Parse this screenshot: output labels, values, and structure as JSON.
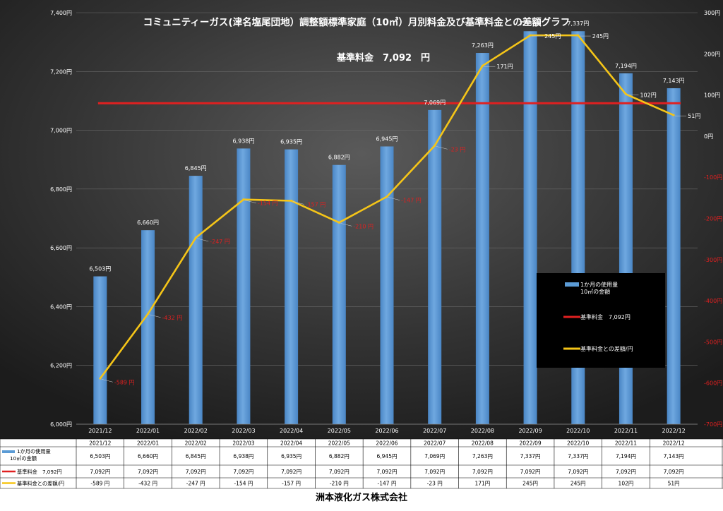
{
  "company": "洲本液化ガス株式会社",
  "chart_data": {
    "type": "bar",
    "title": "コミュニティーガス(津名塩尾団地）調整額標準家庭（10㎥）月別料金及び基準料金との差額グラフ",
    "subtitle": "基準料金　7,092　円",
    "categories": [
      "2021/12",
      "2022/01",
      "2022/02",
      "2022/03",
      "2022/04",
      "2022/05",
      "2022/06",
      "2022/07",
      "2022/08",
      "2022/09",
      "2022/10",
      "2022/11",
      "2022/12"
    ],
    "ylim": [
      6000,
      7400
    ],
    "y2lim": [
      -700,
      300
    ],
    "yticks": [
      "6,000円",
      "6,200円",
      "6,400円",
      "6,600円",
      "6,800円",
      "7,000円",
      "7,200円",
      "7,400円"
    ],
    "y2ticks": [
      "-700円",
      "-600円",
      "-500円",
      "-400円",
      "-300円",
      "-200円",
      "-100円",
      "0円",
      "100円",
      "200円",
      "300円"
    ],
    "series": [
      {
        "name": "1か月の使用量10㎥の金額",
        "legend_label": [
          "1か月の使用量",
          "10㎥の金額"
        ],
        "table_label": [
          "1か月の使用量",
          "10㎥の金額"
        ],
        "type": "bar",
        "axis": "left",
        "color": "#5b9bd5",
        "values": [
          6503,
          6660,
          6845,
          6938,
          6935,
          6882,
          6945,
          7069,
          7263,
          7337,
          7337,
          7194,
          7143
        ],
        "labels": [
          "6,503円",
          "6,660円",
          "6,845円",
          "6,938円",
          "6,935円",
          "6,882円",
          "6,945円",
          "7,069円",
          "7,263円",
          "7,337円",
          "7,337円",
          "7,194円",
          "7,143円"
        ]
      },
      {
        "name": "基準料金　7,092円",
        "legend_label": [
          "基準料金　7,092円"
        ],
        "table_label": [
          "基準料金　7,092円"
        ],
        "type": "line",
        "axis": "left",
        "color": "#e02020",
        "values": [
          7092,
          7092,
          7092,
          7092,
          7092,
          7092,
          7092,
          7092,
          7092,
          7092,
          7092,
          7092,
          7092
        ],
        "labels": [
          "7,092円",
          "7,092円",
          "7,092円",
          "7,092円",
          "7,092円",
          "7,092円",
          "7,092円",
          "7,092円",
          "7,092円",
          "7,092円",
          "7,092円",
          "7,092円",
          "7,092円"
        ]
      },
      {
        "name": "基準料金との差額/円",
        "legend_label": [
          "基準料金との差額/円"
        ],
        "table_label": [
          "基準料金との差額/円"
        ],
        "type": "line",
        "axis": "right",
        "color": "#f5c518",
        "values": [
          -589,
          -432,
          -247,
          -154,
          -157,
          -210,
          -147,
          -23,
          171,
          245,
          245,
          102,
          51
        ],
        "labels": [
          "-589 円",
          "-432 円",
          "-247 円",
          "-154 円",
          "-157 円",
          "-210 円",
          "-147 円",
          "-23 円",
          "171円",
          "245円",
          "245円",
          "102円",
          "51円"
        ]
      }
    ],
    "legend": "center-right"
  }
}
